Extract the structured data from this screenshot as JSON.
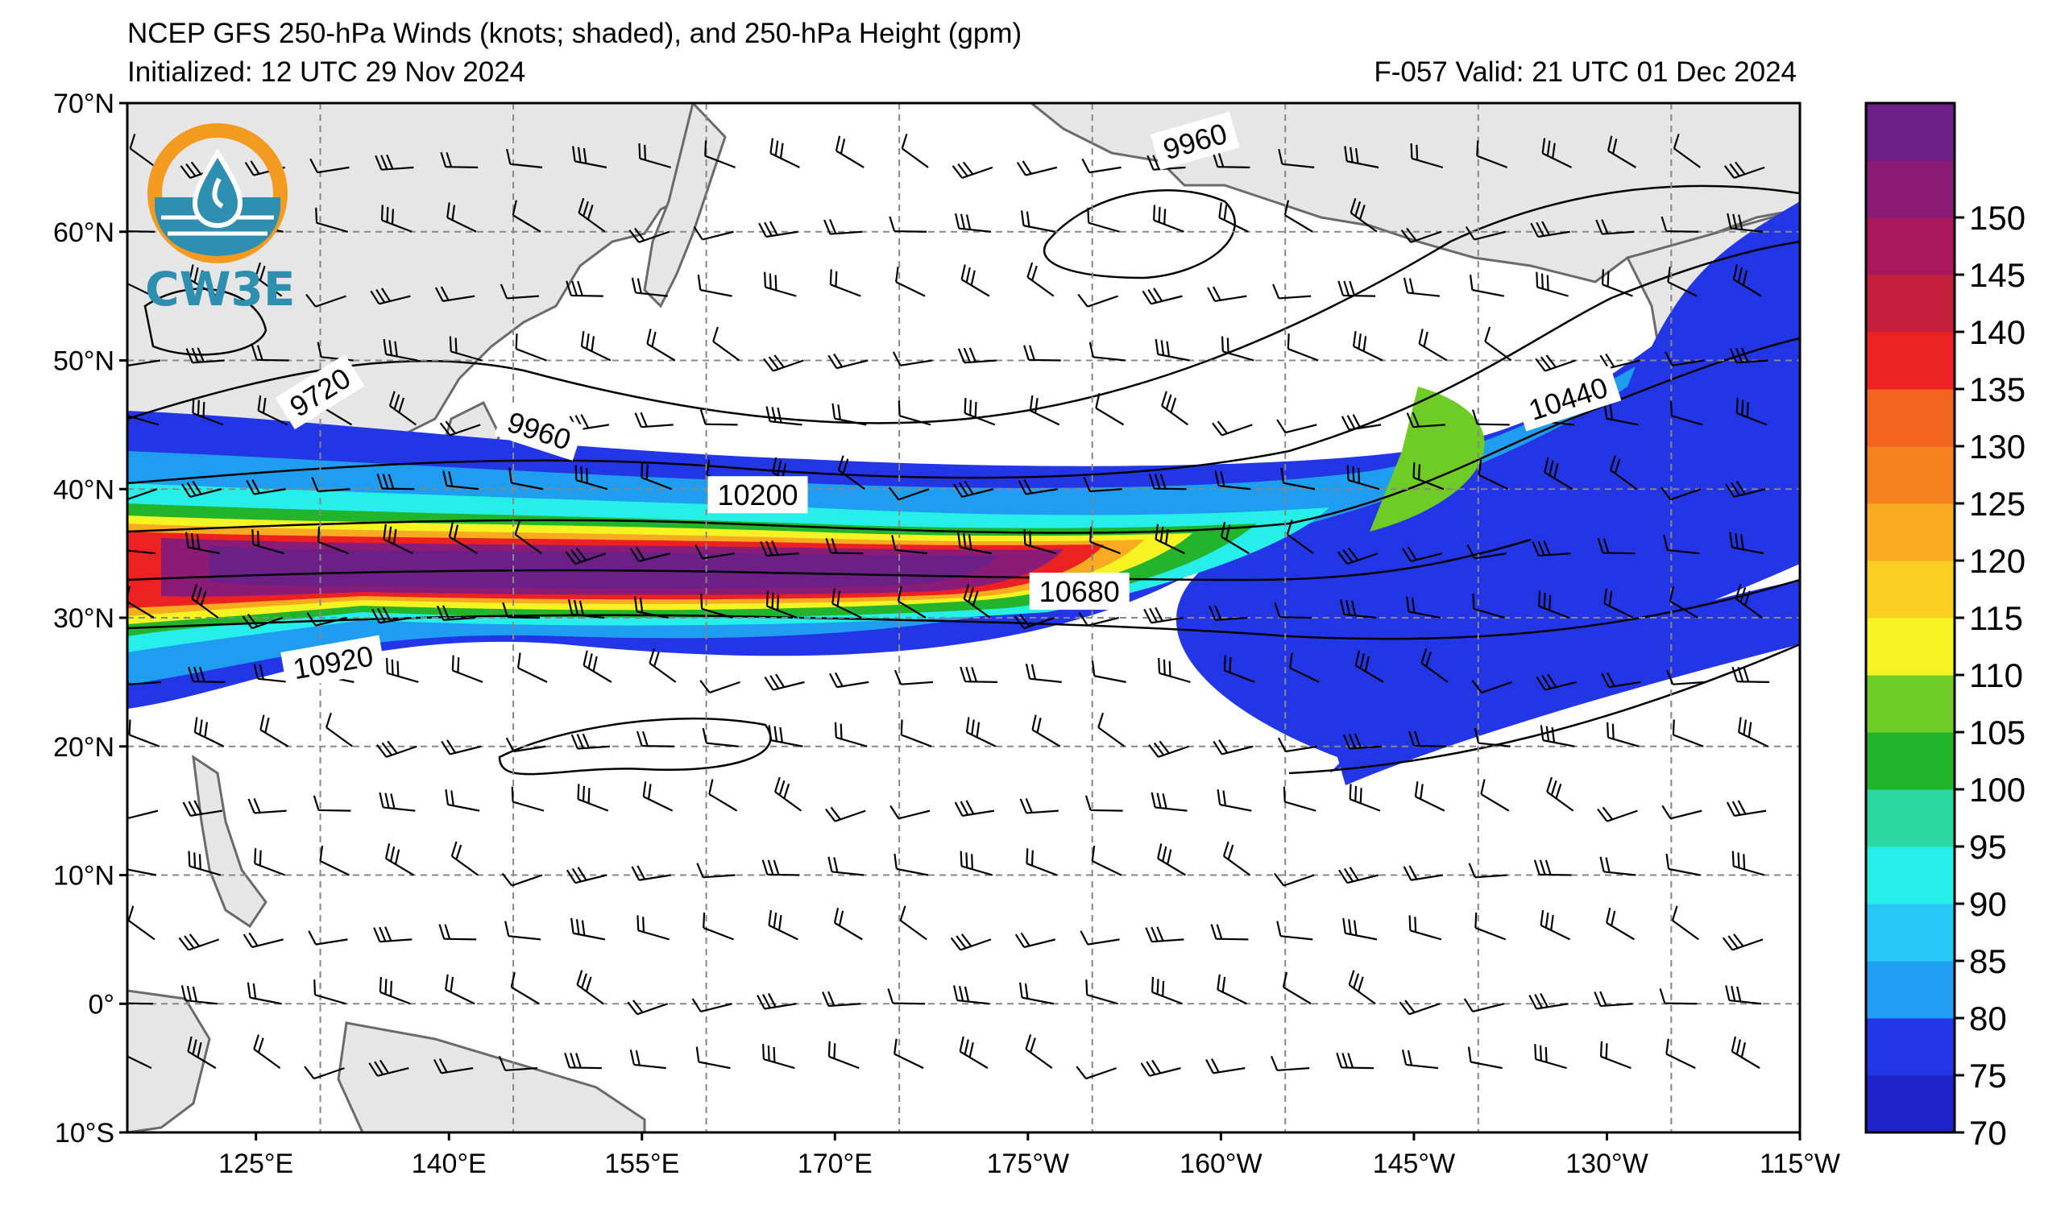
{
  "header": {
    "title": "NCEP GFS 250-hPa Winds (knots; shaded), and 250-hPa Height (gpm)",
    "initialized": "Initialized: 12 UTC 29 Nov 2024",
    "valid": "F-057  Valid: 21 UTC 01 Dec 2024"
  },
  "logo": {
    "text": "CW3E",
    "icon": "water-drop-icon",
    "colors": {
      "ring": "#f29b20",
      "body": "#2f8fb0"
    }
  },
  "map": {
    "extent": {
      "lon_min": 115,
      "lon_max": 245,
      "lat_min": -10,
      "lat_max": 70
    },
    "lat_ticks": [
      {
        "lat": 70,
        "label": "70°N"
      },
      {
        "lat": 60,
        "label": "60°N"
      },
      {
        "lat": 50,
        "label": "50°N"
      },
      {
        "lat": 40,
        "label": "40°N"
      },
      {
        "lat": 30,
        "label": "30°N"
      },
      {
        "lat": 20,
        "label": "20°N"
      },
      {
        "lat": 10,
        "label": "10°N"
      },
      {
        "lat": 0,
        "label": "0°"
      },
      {
        "lat": -10,
        "label": "10°S"
      }
    ],
    "lon_ticks": [
      {
        "lon": 125,
        "label": "125°E"
      },
      {
        "lon": 140,
        "label": "140°E"
      },
      {
        "lon": 155,
        "label": "155°E"
      },
      {
        "lon": 170,
        "label": "170°E"
      },
      {
        "lon": 185,
        "label": "175°W"
      },
      {
        "lon": 200,
        "label": "160°W"
      },
      {
        "lon": 215,
        "label": "145°W"
      },
      {
        "lon": 230,
        "label": "130°W"
      },
      {
        "lon": 245,
        "label": "115°W"
      }
    ],
    "grid_lon": [
      130,
      145,
      160,
      175,
      190,
      205,
      220,
      235
    ],
    "grid_lat": [
      0,
      10,
      20,
      30,
      40,
      50,
      60
    ],
    "contour_labels": [
      {
        "lon": 130,
        "lat": 47.5,
        "text": "9720",
        "angle": -32
      },
      {
        "lon": 147,
        "lat": 44.5,
        "text": "9960",
        "angle": 18
      },
      {
        "lon": 198,
        "lat": 67,
        "text": "9960",
        "angle": -16
      },
      {
        "lon": 164,
        "lat": 39.5,
        "text": "10200",
        "angle": 0
      },
      {
        "lon": 227,
        "lat": 47,
        "text": "10440",
        "angle": -18
      },
      {
        "lon": 189,
        "lat": 32,
        "text": "10680",
        "angle": 0
      },
      {
        "lon": 131,
        "lat": 26.5,
        "text": "10920",
        "angle": -10
      }
    ]
  },
  "colorbar": {
    "levels": [
      {
        "v": "70",
        "color": "#1e22c8"
      },
      {
        "v": "75",
        "color": "#2236e6"
      },
      {
        "v": "80",
        "color": "#1f9df0"
      },
      {
        "v": "85",
        "color": "#27c8f5"
      },
      {
        "v": "90",
        "color": "#25efe8"
      },
      {
        "v": "95",
        "color": "#2bd9a0"
      },
      {
        "v": "100",
        "color": "#22b52c"
      },
      {
        "v": "105",
        "color": "#6fcc24"
      },
      {
        "v": "110",
        "color": "#f6f323"
      },
      {
        "v": "115",
        "color": "#f9cf24"
      },
      {
        "v": "120",
        "color": "#f8ab21"
      },
      {
        "v": "125",
        "color": "#f6821f"
      },
      {
        "v": "130",
        "color": "#f2651e"
      },
      {
        "v": "135",
        "color": "#ed2121"
      },
      {
        "v": "140",
        "color": "#c51f3e"
      },
      {
        "v": "145",
        "color": "#a8185a"
      },
      {
        "v": "150",
        "color": "#8a1c78"
      },
      {
        "v": "155",
        "color": "#6b1f87"
      }
    ],
    "tick_labels": [
      "70",
      "75",
      "80",
      "85",
      "90",
      "95",
      "100",
      "105",
      "110",
      "115",
      "120",
      "125",
      "130",
      "135",
      "140",
      "145",
      "150"
    ]
  }
}
